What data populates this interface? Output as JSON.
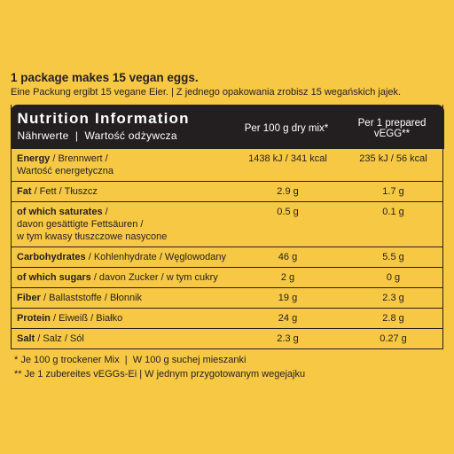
{
  "header": {
    "title": "1 package makes 15 vegan eggs.",
    "subtitle": "Eine Packung ergibt 15 vegane Eier. | Z jednego opakowania zrobisz 15 wegańskich jajek."
  },
  "table": {
    "title": "Nutrition Information",
    "subtitle": "Nährwerte  |  Wartość odżywcza",
    "columns": [
      "Per 100 g dry mix*",
      "Per 1 prepared vEGG**"
    ],
    "rows": [
      {
        "name": "Energy",
        "lines": [
          "/ Brennwert /",
          "Wartość energetyczna"
        ],
        "values": [
          "1438 kJ / 341 kcal",
          "235 kJ / 56 kcal"
        ]
      },
      {
        "name": "Fat",
        "lines": [
          "/ Fett / Tłuszcz"
        ],
        "values": [
          "2.9 g",
          "1.7 g"
        ]
      },
      {
        "name": "of which saturates",
        "lines": [
          "/",
          "davon gesättigte Fettsäuren /",
          "w tym kwasy tłuszczowe nasycone"
        ],
        "values": [
          "0.5 g",
          "0.1 g"
        ]
      },
      {
        "name": "Carbohydrates",
        "lines": [
          "/ Kohlenhydrate / Węglowodany"
        ],
        "values": [
          "46 g",
          "5.5 g"
        ]
      },
      {
        "name": "of which sugars",
        "lines": [
          "/ davon Zucker / w tym cukry"
        ],
        "values": [
          "2 g",
          "0 g"
        ]
      },
      {
        "name": "Fiber",
        "lines": [
          "/ Ballaststoffe / Błonnik"
        ],
        "values": [
          "19 g",
          "2.3 g"
        ]
      },
      {
        "name": "Protein",
        "lines": [
          "/ Eiweiß / Białko"
        ],
        "values": [
          "24 g",
          "2.8 g"
        ]
      },
      {
        "name": "Salt",
        "lines": [
          "/ Salz / Sól"
        ],
        "values": [
          "2.3 g",
          "0.27 g"
        ]
      }
    ]
  },
  "footnotes": [
    "* Je 100 g trockener Mix  |  W 100 g suchej mieszanki",
    "** Je 1 zubereites vEGGs-Ei | W jednym przygotowanym wegejajku"
  ]
}
